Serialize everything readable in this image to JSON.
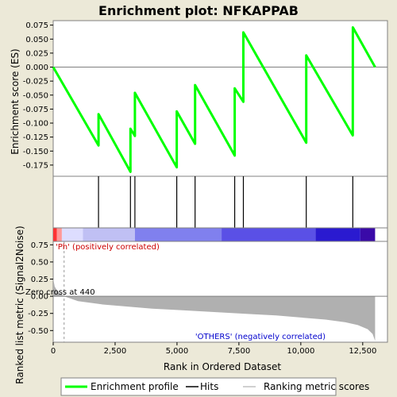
{
  "chart_data": {
    "type": "line",
    "title": "Enrichment plot: NFKAPPAB",
    "x_axis": {
      "label": "Rank in Ordered Dataset",
      "range": [
        0,
        13500
      ],
      "ticks": [
        0,
        2500,
        5000,
        7500,
        10000,
        12500
      ],
      "tick_labels": [
        "0",
        "2,500",
        "5,000",
        "7,500",
        "10,000",
        "12,500"
      ]
    },
    "enrichment": {
      "ylabel": "Enrichment score (ES)",
      "ylim": [
        -0.195,
        0.083
      ],
      "yticks": [
        0.075,
        0.05,
        0.025,
        0.0,
        -0.025,
        -0.05,
        -0.075,
        -0.1,
        -0.125,
        -0.15,
        -0.175
      ],
      "ytick_labels": [
        "0.075",
        "0.050",
        "0.025",
        "0.000",
        "-0.025",
        "-0.050",
        "-0.075",
        "-0.100",
        "-0.125",
        "-0.150",
        "-0.175"
      ],
      "color": "#00ff00",
      "points": [
        [
          0,
          0.0
        ],
        [
          1830,
          -0.14
        ],
        [
          1831,
          -0.084
        ],
        [
          3120,
          -0.187
        ],
        [
          3121,
          -0.11
        ],
        [
          3300,
          -0.123
        ],
        [
          3301,
          -0.046
        ],
        [
          4990,
          -0.179
        ],
        [
          4991,
          -0.079
        ],
        [
          5730,
          -0.137
        ],
        [
          5731,
          -0.032
        ],
        [
          7330,
          -0.158
        ],
        [
          7331,
          -0.038
        ],
        [
          7680,
          -0.062
        ],
        [
          7681,
          0.062
        ],
        [
          10220,
          -0.135
        ],
        [
          10221,
          0.021
        ],
        [
          12100,
          -0.122
        ],
        [
          12101,
          0.071
        ],
        [
          13000,
          0.0
        ]
      ]
    },
    "hits": [
      1830,
      3120,
      3300,
      4990,
      5730,
      7330,
      7680,
      10220,
      12100
    ],
    "heat_bar": {
      "segments": [
        {
          "from": 0,
          "to": 150,
          "color": "#ff3333"
        },
        {
          "from": 150,
          "to": 350,
          "color": "#ff9999"
        },
        {
          "from": 350,
          "to": 1200,
          "color": "#ddddff"
        },
        {
          "from": 1200,
          "to": 3300,
          "color": "#c0c0f4"
        },
        {
          "from": 3300,
          "to": 6800,
          "color": "#8080ee"
        },
        {
          "from": 6800,
          "to": 10600,
          "color": "#5a50e6"
        },
        {
          "from": 10600,
          "to": 12400,
          "color": "#2a1ad0"
        },
        {
          "from": 12400,
          "to": 13000,
          "color": "#3a0aa8"
        }
      ]
    },
    "ranked_metric": {
      "ylabel": "Ranked list metric (Signal2Noise)",
      "ylim": [
        -0.67,
        0.8
      ],
      "yticks": [
        0.75,
        0.5,
        0.25,
        0.0,
        -0.25,
        -0.5
      ],
      "ytick_labels": [
        "0.75",
        "0.50",
        "0.25",
        "0.00",
        "-0.25",
        "-0.50"
      ],
      "points": [
        [
          0,
          0.26
        ],
        [
          60,
          0.14
        ],
        [
          200,
          0.06
        ],
        [
          440,
          0.0
        ],
        [
          1000,
          -0.07
        ],
        [
          2000,
          -0.12
        ],
        [
          3000,
          -0.15
        ],
        [
          4000,
          -0.18
        ],
        [
          5000,
          -0.2
        ],
        [
          6000,
          -0.22
        ],
        [
          7000,
          -0.24
        ],
        [
          8000,
          -0.26
        ],
        [
          9000,
          -0.28
        ],
        [
          10000,
          -0.31
        ],
        [
          11000,
          -0.34
        ],
        [
          11800,
          -0.38
        ],
        [
          12300,
          -0.42
        ],
        [
          12700,
          -0.48
        ],
        [
          12900,
          -0.55
        ],
        [
          13000,
          -0.65
        ]
      ],
      "fill_color": "#b0b0b0",
      "zero_cross_rank": 440
    },
    "annotations": {
      "positive_label": "'Ph' (positively correlated)",
      "negative_label": "'OTHERS' (negatively correlated)",
      "zero_cross_label": "Zero cross at 440"
    },
    "legend": {
      "placement": "bottom",
      "items": [
        {
          "label": "Enrichment profile",
          "color": "#00ff00"
        },
        {
          "label": "Hits",
          "color": "#000000"
        },
        {
          "label": "Ranking metric scores",
          "color": "#c0c0c0"
        }
      ]
    }
  }
}
